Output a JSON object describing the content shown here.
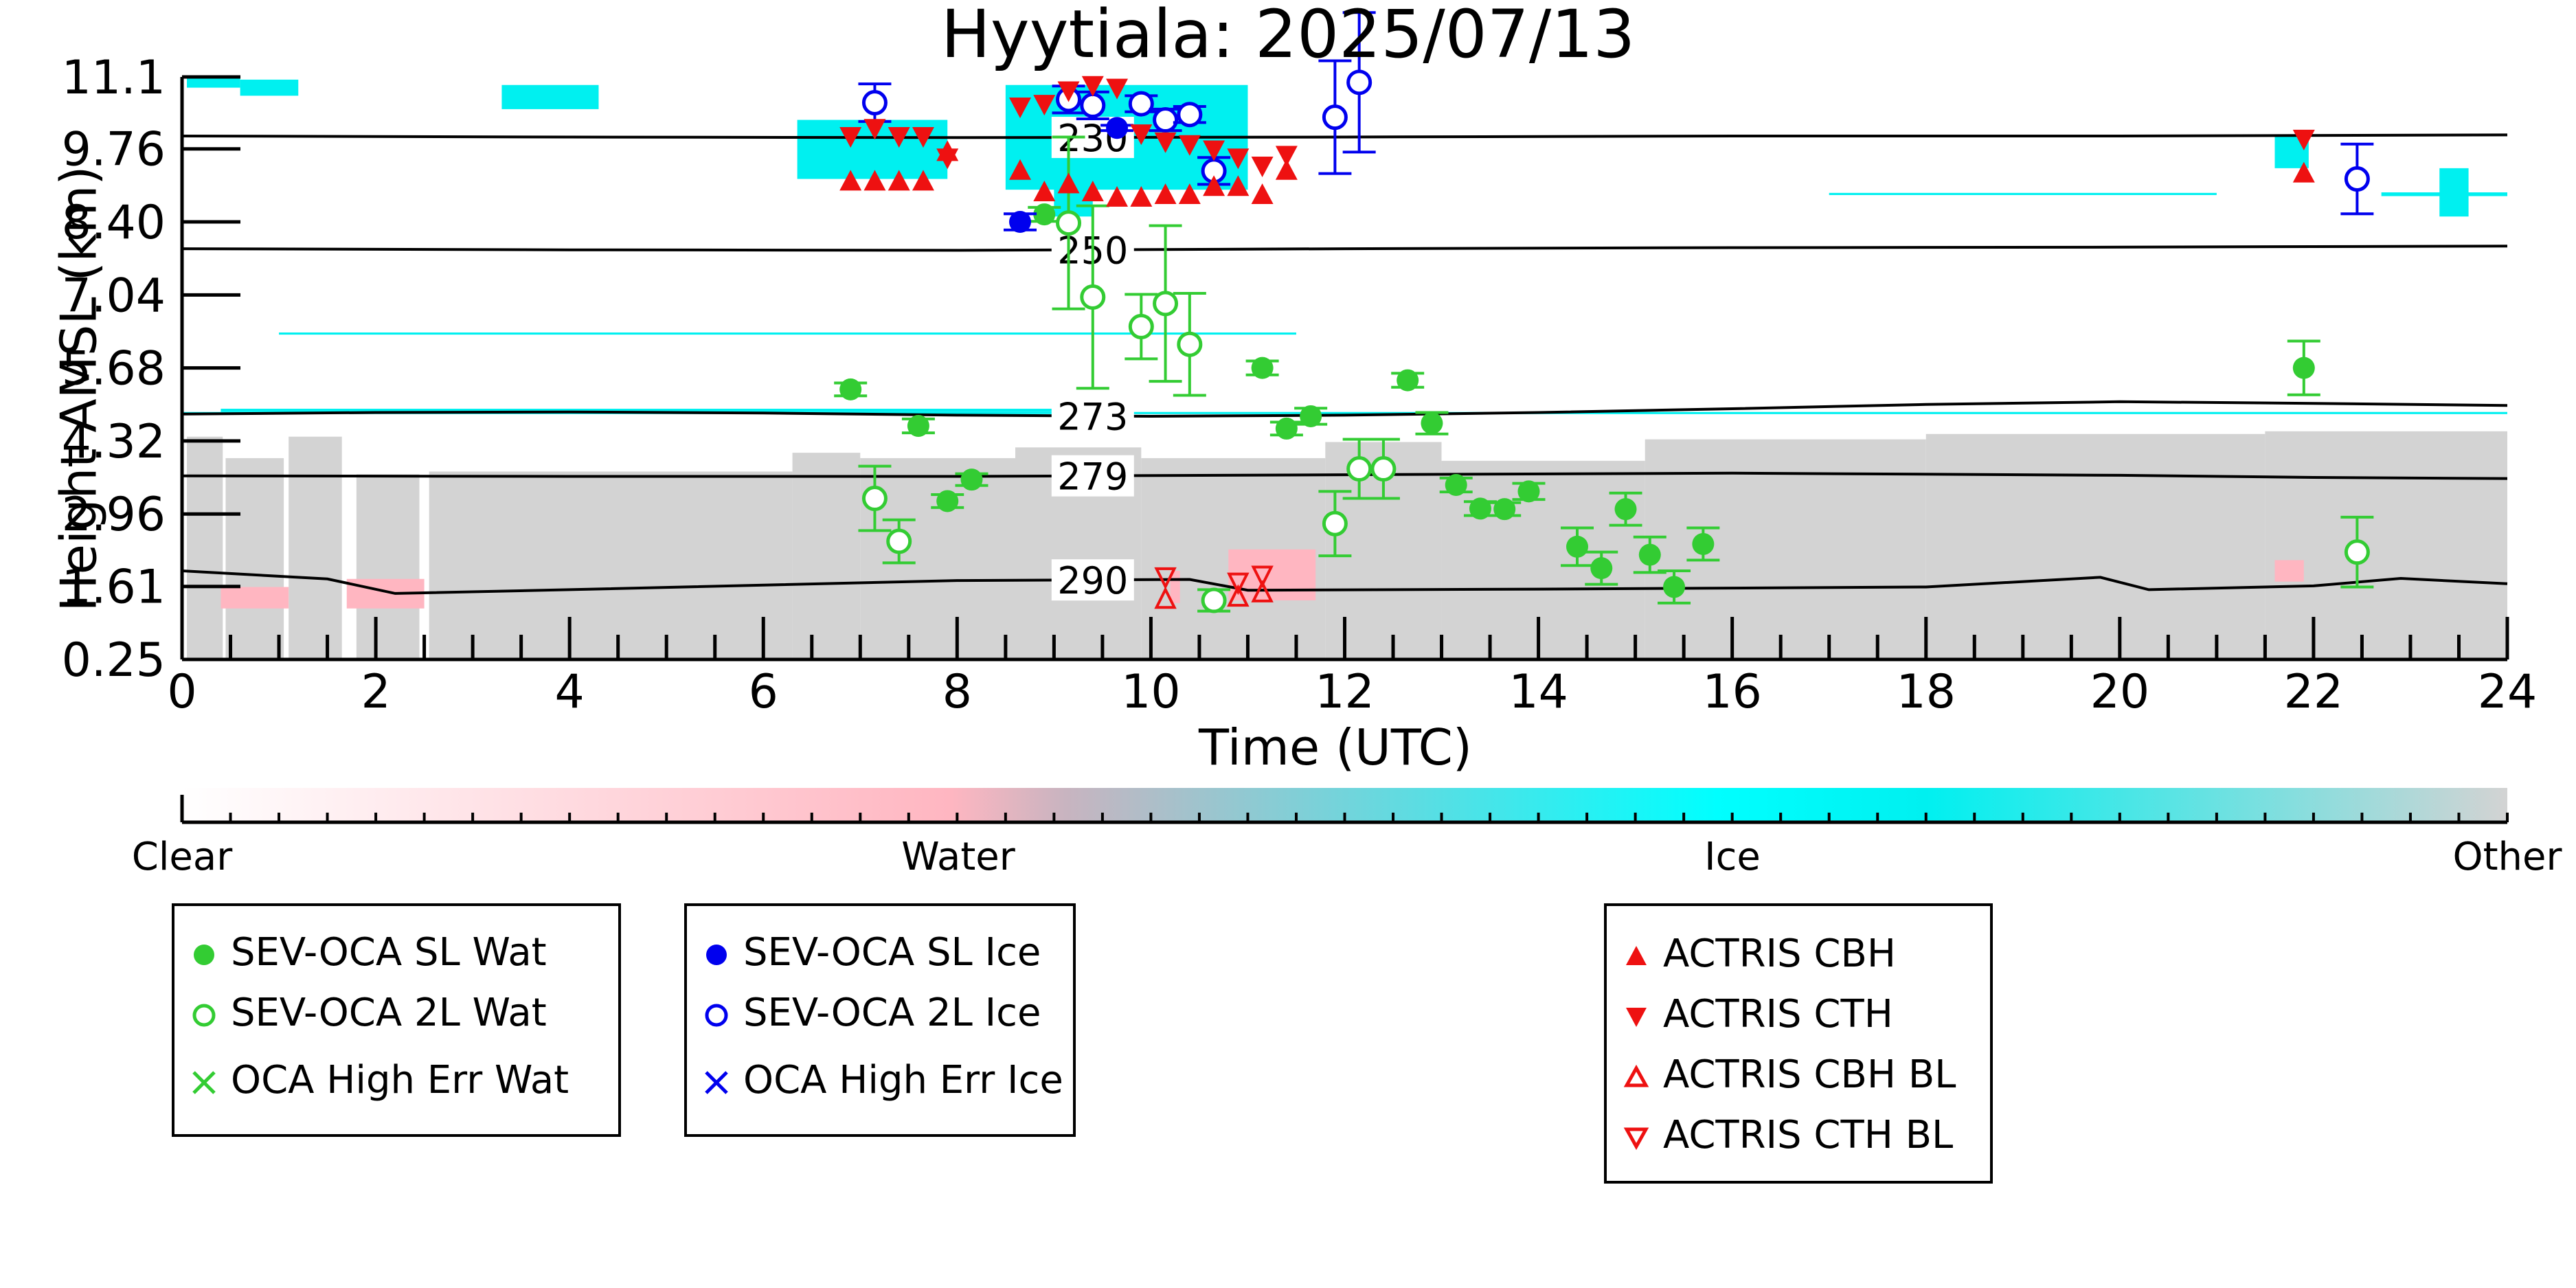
{
  "chart_data": {
    "type": "scatter",
    "title": "Hyytiala: 2025/07/13",
    "xlabel": "Time (UTC)",
    "ylabel": "Height AMSL (km)",
    "xlim": [
      0,
      24
    ],
    "ylim": [
      0.25,
      11.1
    ],
    "xticks": [
      0,
      2,
      4,
      6,
      8,
      10,
      12,
      14,
      16,
      18,
      20,
      22,
      24
    ],
    "yticks": [
      "0.25",
      "1.61",
      "2.96",
      "4.32",
      "5.68",
      "7.04",
      "8.40",
      "9.76",
      "11.1"
    ],
    "contours": [
      {
        "label": "230",
        "label_x": 9.4,
        "points": [
          [
            0,
            10.0
          ],
          [
            4,
            9.98
          ],
          [
            8,
            9.97
          ],
          [
            12,
            9.98
          ],
          [
            16,
            10.0
          ],
          [
            20,
            10.0
          ],
          [
            24,
            10.02
          ]
        ]
      },
      {
        "label": "250",
        "label_x": 9.4,
        "points": [
          [
            0,
            7.9
          ],
          [
            4,
            7.88
          ],
          [
            8,
            7.87
          ],
          [
            12,
            7.9
          ],
          [
            16,
            7.92
          ],
          [
            20,
            7.93
          ],
          [
            24,
            7.95
          ]
        ]
      },
      {
        "label": "273",
        "label_x": 9.4,
        "points": [
          [
            0,
            4.82
          ],
          [
            2,
            4.85
          ],
          [
            4,
            4.86
          ],
          [
            6,
            4.84
          ],
          [
            8,
            4.8
          ],
          [
            10,
            4.78
          ],
          [
            12,
            4.8
          ],
          [
            14,
            4.85
          ],
          [
            16,
            4.92
          ],
          [
            18,
            5.0
          ],
          [
            20,
            5.05
          ],
          [
            22,
            5.02
          ],
          [
            24,
            4.98
          ]
        ]
      },
      {
        "label": "279",
        "label_x": 9.4,
        "points": [
          [
            0,
            3.67
          ],
          [
            4,
            3.66
          ],
          [
            8,
            3.66
          ],
          [
            12,
            3.69
          ],
          [
            16,
            3.72
          ],
          [
            20,
            3.68
          ],
          [
            22,
            3.64
          ],
          [
            24,
            3.62
          ]
        ]
      },
      {
        "label": "290",
        "label_x": 9.4,
        "points": [
          [
            0,
            1.9
          ],
          [
            1.5,
            1.75
          ],
          [
            2.2,
            1.48
          ],
          [
            4,
            1.55
          ],
          [
            8,
            1.72
          ],
          [
            10.4,
            1.74
          ],
          [
            11,
            1.54
          ],
          [
            14,
            1.56
          ],
          [
            18,
            1.6
          ],
          [
            19.8,
            1.78
          ],
          [
            20.3,
            1.55
          ],
          [
            22,
            1.62
          ],
          [
            22.9,
            1.76
          ],
          [
            24,
            1.66
          ]
        ]
      }
    ],
    "series": [
      {
        "name": "SEV-OCA SL Wat",
        "marker": "filled-circle",
        "color": "#33cc33",
        "points": [
          [
            6.9,
            5.28,
            0.12
          ],
          [
            7.6,
            4.6,
            0.13
          ],
          [
            7.9,
            3.2,
            0.12
          ],
          [
            8.15,
            3.6,
            0.11
          ],
          [
            8.9,
            8.54,
            0.13
          ],
          [
            11.15,
            5.68,
            0.13
          ],
          [
            11.4,
            4.55,
            0.12
          ],
          [
            11.65,
            4.78,
            0.15
          ],
          [
            12.65,
            5.45,
            0.13
          ],
          [
            12.9,
            4.65,
            0.2
          ],
          [
            13.15,
            3.5,
            0.13
          ],
          [
            13.4,
            3.06,
            0.13
          ],
          [
            13.65,
            3.05,
            0.12
          ],
          [
            13.9,
            3.38,
            0.15
          ],
          [
            14.4,
            2.35,
            0.35
          ],
          [
            14.65,
            1.95,
            0.3
          ],
          [
            14.9,
            3.05,
            0.3
          ],
          [
            15.15,
            2.2,
            0.33
          ],
          [
            15.4,
            1.6,
            0.3
          ],
          [
            15.7,
            2.4,
            0.3
          ],
          [
            21.9,
            5.68,
            0.5
          ]
        ]
      },
      {
        "name": "SEV-OCA 2L Wat",
        "marker": "open-circle",
        "color": "#33cc33",
        "points": [
          [
            7.15,
            3.25,
            0.6
          ],
          [
            7.4,
            2.45,
            0.4
          ],
          [
            9.15,
            8.38,
            1.6
          ],
          [
            9.4,
            7.0,
            1.7
          ],
          [
            9.9,
            6.45,
            0.6
          ],
          [
            10.15,
            6.88,
            1.45
          ],
          [
            10.4,
            6.12,
            0.95
          ],
          [
            10.65,
            1.35,
            0.2
          ],
          [
            11.9,
            2.78,
            0.6
          ],
          [
            12.15,
            3.8,
            0.55
          ],
          [
            12.4,
            3.8,
            0.55
          ],
          [
            22.45,
            2.25,
            0.65
          ]
        ]
      },
      {
        "name": "OCA High Err Wat",
        "marker": "cross",
        "color": "#33cc33",
        "points": []
      },
      {
        "name": "SEV-OCA SL Ice",
        "marker": "filled-circle",
        "color": "#0000ee",
        "points": [
          [
            8.65,
            8.4,
            0.15
          ],
          [
            9.65,
            10.15,
            0.05
          ]
        ]
      },
      {
        "name": "SEV-OCA 2L Ice",
        "marker": "open-circle",
        "color": "#0000ee",
        "points": [
          [
            7.15,
            10.62,
            0.35
          ],
          [
            9.15,
            10.68,
            0.25
          ],
          [
            9.4,
            10.57,
            0.25
          ],
          [
            9.9,
            10.6,
            0.15
          ],
          [
            10.15,
            10.3,
            0.2
          ],
          [
            10.4,
            10.4,
            0.15
          ],
          [
            10.65,
            9.35,
            0.25
          ],
          [
            11.9,
            10.35,
            1.05
          ],
          [
            12.15,
            11.0,
            1.3
          ],
          [
            22.45,
            9.2,
            0.65
          ]
        ]
      },
      {
        "name": "OCA High Err Ice",
        "marker": "cross",
        "color": "#0000ee",
        "points": []
      },
      {
        "name": "ACTRIS CBH",
        "marker": "filled-triangle-up",
        "color": "#ee1111",
        "points": [
          [
            6.9,
            9.15
          ],
          [
            7.15,
            9.15
          ],
          [
            7.4,
            9.15
          ],
          [
            7.65,
            9.15
          ],
          [
            7.9,
            9.7
          ],
          [
            8.65,
            9.35
          ],
          [
            8.9,
            8.95
          ],
          [
            9.15,
            9.1
          ],
          [
            9.4,
            8.95
          ],
          [
            9.65,
            8.85
          ],
          [
            9.9,
            8.85
          ],
          [
            10.15,
            8.9
          ],
          [
            10.4,
            8.9
          ],
          [
            10.65,
            9.05
          ],
          [
            10.9,
            9.05
          ],
          [
            11.15,
            8.9
          ],
          [
            11.4,
            9.35
          ],
          [
            21.9,
            9.3
          ]
        ]
      },
      {
        "name": "ACTRIS CTH",
        "marker": "filled-triangle-down",
        "color": "#ee1111",
        "points": [
          [
            6.9,
            10.0
          ],
          [
            7.15,
            10.15
          ],
          [
            7.4,
            10.0
          ],
          [
            7.65,
            10.0
          ],
          [
            7.9,
            9.6
          ],
          [
            8.65,
            10.55
          ],
          [
            8.9,
            10.6
          ],
          [
            9.15,
            10.85
          ],
          [
            9.4,
            10.95
          ],
          [
            9.65,
            10.9
          ],
          [
            9.9,
            10.05
          ],
          [
            10.15,
            9.9
          ],
          [
            10.4,
            9.85
          ],
          [
            10.65,
            9.75
          ],
          [
            10.9,
            9.6
          ],
          [
            11.15,
            9.45
          ],
          [
            11.4,
            9.65
          ],
          [
            21.9,
            9.95
          ]
        ]
      },
      {
        "name": "ACTRIS CBH BL",
        "marker": "open-triangle-up",
        "color": "#ee1111",
        "points": [
          [
            10.15,
            1.36
          ],
          [
            10.9,
            1.4
          ],
          [
            11.15,
            1.48
          ]
        ]
      },
      {
        "name": "ACTRIS CTH BL",
        "marker": "open-triangle-down",
        "color": "#ee1111",
        "points": [
          [
            10.15,
            1.8
          ],
          [
            10.9,
            1.7
          ],
          [
            11.15,
            1.83
          ]
        ]
      }
    ],
    "colorbar": {
      "labels": [
        "Clear",
        "Water",
        "Ice",
        "Other"
      ],
      "colors": [
        "#ffffff",
        "#ffb6c1",
        "#00ffff",
        "#d3d3d3"
      ]
    },
    "legend_groups": [
      [
        "SEV-OCA SL Wat",
        "SEV-OCA 2L Wat",
        "OCA High Err Wat"
      ],
      [
        "SEV-OCA SL Ice",
        "SEV-OCA 2L Ice",
        "OCA High Err Ice"
      ],
      [
        "ACTRIS CBH",
        "ACTRIS CTH",
        "ACTRIS CBH BL",
        "ACTRIS CTH BL"
      ]
    ],
    "background_regions": {
      "other": [
        [
          0.05,
          0.25,
          0.42,
          4.4
        ],
        [
          0.45,
          0.25,
          1.05,
          4.0
        ],
        [
          1.1,
          0.25,
          1.65,
          4.4
        ],
        [
          1.8,
          0.25,
          2.45,
          3.7
        ],
        [
          2.55,
          0.25,
          6.3,
          3.75
        ],
        [
          6.3,
          0.25,
          7.0,
          4.1
        ],
        [
          7.0,
          0.25,
          8.6,
          4.0
        ],
        [
          8.6,
          0.25,
          9.9,
          4.2
        ],
        [
          9.9,
          0.25,
          11.8,
          4.0
        ],
        [
          11.8,
          0.25,
          13.0,
          4.3
        ],
        [
          13.0,
          0.25,
          15.1,
          3.95
        ],
        [
          15.1,
          0.25,
          18.0,
          4.35
        ],
        [
          18.0,
          0.25,
          21.5,
          4.45
        ],
        [
          21.5,
          0.25,
          24.0,
          4.5
        ]
      ],
      "water": [
        [
          0.4,
          1.2,
          1.1,
          1.6
        ],
        [
          1.7,
          1.2,
          2.5,
          1.75
        ],
        [
          10.2,
          1.3,
          10.3,
          1.9
        ],
        [
          10.8,
          1.35,
          11.7,
          2.3
        ],
        [
          21.6,
          1.7,
          21.9,
          2.1
        ]
      ],
      "ice": [
        [
          0.05,
          10.9,
          0.6,
          11.1
        ],
        [
          0.6,
          10.75,
          1.2,
          11.05
        ],
        [
          3.3,
          10.5,
          4.3,
          10.95
        ],
        [
          6.35,
          9.2,
          7.9,
          10.3
        ],
        [
          8.5,
          9.0,
          11.0,
          10.95
        ],
        [
          9.0,
          8.5,
          9.4,
          9.1
        ],
        [
          21.6,
          9.4,
          21.95,
          10.0
        ],
        [
          22.7,
          8.88,
          24.0,
          8.95
        ],
        [
          23.3,
          8.5,
          23.6,
          9.4
        ],
        [
          0,
          4.82,
          24,
          4.86
        ],
        [
          0.4,
          4.86,
          9.2,
          4.92
        ],
        [
          1.0,
          6.3,
          11.5,
          6.34
        ],
        [
          17.0,
          8.9,
          21.0,
          8.94
        ]
      ]
    }
  }
}
